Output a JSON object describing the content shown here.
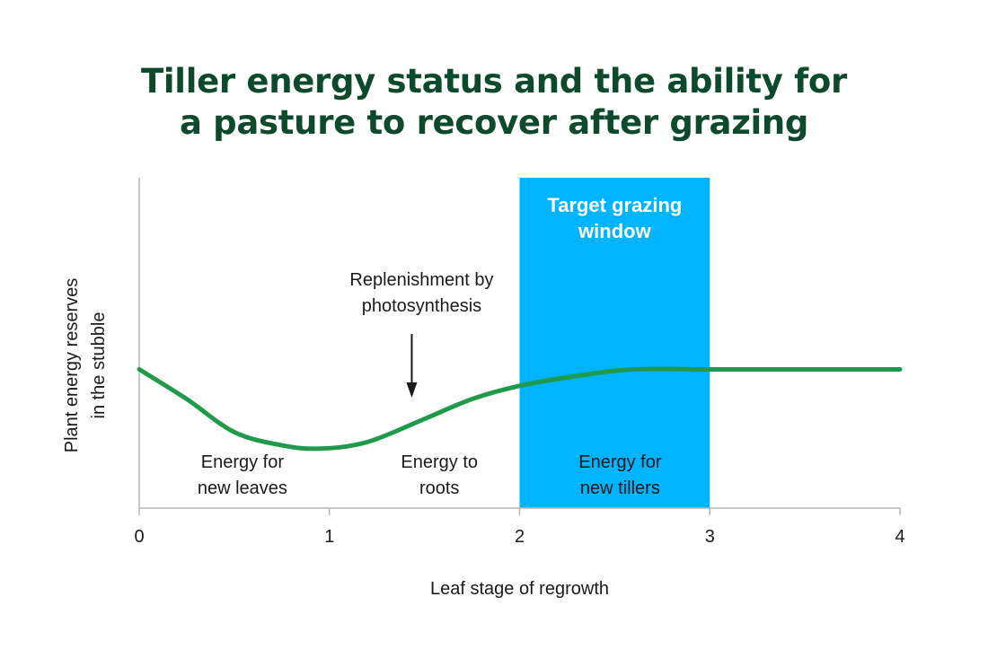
{
  "title": {
    "line1": "Tiller energy status and the ability for",
    "line2": "a pasture to recover after grazing"
  },
  "colors": {
    "title": "#0d4a2b",
    "curve": "#1f9a4a",
    "window": "#00b4ff",
    "axis": "#b5b5b5",
    "text": "#1a1a1a"
  },
  "chart_data": {
    "type": "line",
    "title": "Tiller energy status and the ability for a pasture to recover after grazing",
    "xlabel": "Leaf stage of regrowth",
    "ylabel_lines": [
      "Plant energy reserves",
      "in the stubble"
    ],
    "xlim": [
      0,
      4
    ],
    "ylim": [
      0,
      1
    ],
    "x_ticks": [
      "0",
      "1",
      "2",
      "3",
      "4"
    ],
    "grid": false,
    "series": [
      {
        "x": [
          0,
          0.25,
          0.5,
          0.75,
          0.95,
          1.2,
          1.5,
          1.75,
          2.0,
          2.3,
          2.6,
          3.0,
          3.5,
          4.0
        ],
        "y": [
          0.42,
          0.33,
          0.23,
          0.19,
          0.18,
          0.2,
          0.27,
          0.33,
          0.37,
          0.4,
          0.42,
          0.42,
          0.42,
          0.42
        ]
      }
    ],
    "highlight": {
      "x_range": [
        2,
        3
      ],
      "label_lines": [
        "Target grazing",
        "window"
      ]
    },
    "annotations": [
      {
        "lines": [
          "Energy for",
          "new leaves"
        ],
        "x": 0.5
      },
      {
        "lines": [
          "Energy to",
          "roots"
        ],
        "x": 1.55
      },
      {
        "lines": [
          "Energy for",
          "new tillers"
        ],
        "x": 2.5
      },
      {
        "lines": [
          "Replenishment by",
          "photosynthesis"
        ],
        "x": 1.4,
        "arrow": "down"
      }
    ]
  }
}
